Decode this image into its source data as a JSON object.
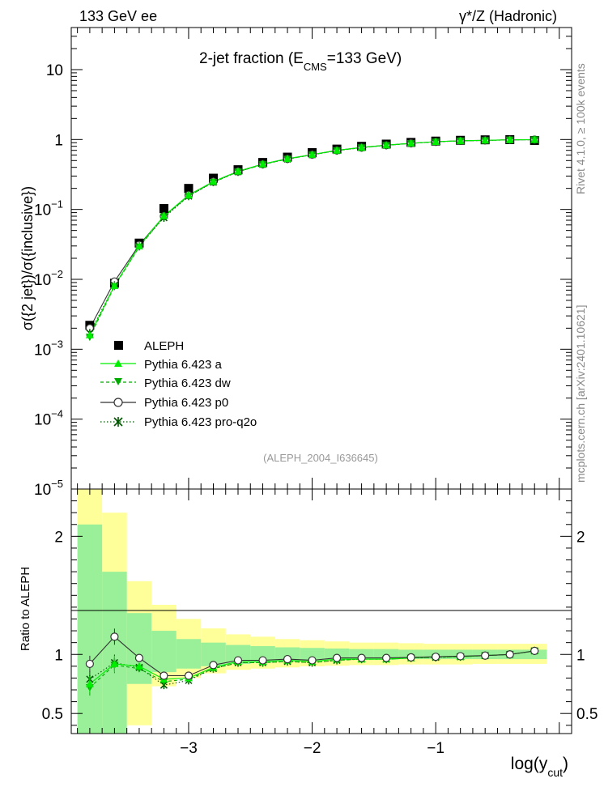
{
  "header": {
    "left": "133 GeV ee",
    "right": "γ*/Z (Hadronic)"
  },
  "side_labels": {
    "rivet": "Rivet 4.1.0, ≥ 100k events",
    "mcplots": "mcplots.cern.ch [arXiv:2401.10621]"
  },
  "chart_data": [
    {
      "type": "scatter",
      "title_main": "2-jet fraction (E",
      "title_sub": "CMS",
      "title_tail": "=133 GeV)",
      "ylabel": "σ({2 jet})/σ({inclusive})",
      "yscale": "log",
      "ylim": [
        1e-05,
        40
      ],
      "xlim": [
        -3.95,
        0.1
      ],
      "ytick_labels": [
        {
          "base": "10",
          "exp": "−5",
          "value": 1e-05
        },
        {
          "base": "10",
          "exp": "−4",
          "value": 0.0001
        },
        {
          "base": "10",
          "exp": "−3",
          "value": 0.001
        },
        {
          "base": "10",
          "exp": "−2",
          "value": 0.01
        },
        {
          "base": "10",
          "exp": "−1",
          "value": 0.1
        },
        {
          "base": "1",
          "exp": "",
          "value": 1
        },
        {
          "base": "10",
          "exp": "",
          "value": 10
        }
      ],
      "watermark": "(ALEPH_2004_I636645)",
      "x": [
        -3.8,
        -3.6,
        -3.4,
        -3.2,
        -3.0,
        -2.8,
        -2.6,
        -2.4,
        -2.2,
        -2.0,
        -1.8,
        -1.6,
        -1.4,
        -1.2,
        -1.0,
        -0.8,
        -0.6,
        -0.4,
        -0.2
      ],
      "series": [
        {
          "name": "ALEPH",
          "values": [
            0.0022,
            0.0088,
            0.033,
            0.103,
            0.2,
            0.28,
            0.37,
            0.47,
            0.56,
            0.65,
            0.73,
            0.8,
            0.86,
            0.91,
            0.95,
            0.975,
            0.99,
            0.995,
            0.97
          ]
        },
        {
          "name": "Pythia 6.423 a",
          "values": [
            0.0016,
            0.0081,
            0.03,
            0.081,
            0.16,
            0.25,
            0.35,
            0.445,
            0.53,
            0.61,
            0.7,
            0.77,
            0.83,
            0.885,
            0.93,
            0.96,
            0.975,
            0.99,
            0.995
          ]
        },
        {
          "name": "Pythia 6.423 dw",
          "values": [
            0.0015,
            0.0079,
            0.029,
            0.079,
            0.155,
            0.245,
            0.345,
            0.44,
            0.525,
            0.605,
            0.695,
            0.765,
            0.825,
            0.88,
            0.925,
            0.955,
            0.97,
            0.99,
            0.995
          ]
        },
        {
          "name": "Pythia 6.423 p0",
          "values": [
            0.002,
            0.0093,
            0.031,
            0.08,
            0.16,
            0.25,
            0.35,
            0.445,
            0.53,
            0.61,
            0.7,
            0.77,
            0.83,
            0.885,
            0.93,
            0.96,
            0.975,
            0.99,
            0.995
          ]
        },
        {
          "name": "Pythia 6.423 pro-q2o",
          "values": [
            0.0017,
            0.0082,
            0.03,
            0.076,
            0.155,
            0.245,
            0.345,
            0.44,
            0.525,
            0.605,
            0.695,
            0.765,
            0.825,
            0.88,
            0.925,
            0.955,
            0.97,
            0.99,
            0.995
          ]
        }
      ]
    },
    {
      "type": "line",
      "ylabel": "Ratio to ALEPH",
      "xlabel_main": "log(y",
      "xlabel_sub": "cut",
      "xlabel_tail": ")",
      "ylim": [
        0.33,
        2.4
      ],
      "xlim": [
        -3.95,
        0.1
      ],
      "ytick_labels": [
        "0.5",
        "1",
        "2"
      ],
      "ytick_values": [
        0.5,
        1,
        2
      ],
      "xtick_labels": [
        "−3",
        "−2",
        "−1"
      ],
      "xtick_values": [
        -3,
        -2,
        -1
      ],
      "band_edges": [
        -3.9,
        -3.7,
        -3.5,
        -3.3,
        -3.1,
        -2.9,
        -2.7,
        -2.5,
        -2.3,
        -2.1,
        -1.9,
        -1.7,
        -1.5,
        -1.3,
        -1.1,
        -0.9,
        -0.7,
        -0.5,
        -0.3,
        -0.1
      ],
      "band_inner": [
        [
          0.33,
          2.1
        ],
        [
          0.33,
          1.7
        ],
        [
          0.75,
          1.35
        ],
        [
          0.85,
          1.2
        ],
        [
          0.88,
          1.13
        ],
        [
          0.9,
          1.1
        ],
        [
          0.92,
          1.08
        ],
        [
          0.93,
          1.07
        ],
        [
          0.94,
          1.06
        ],
        [
          0.945,
          1.055
        ],
        [
          0.95,
          1.05
        ],
        [
          0.955,
          1.045
        ],
        [
          0.955,
          1.045
        ],
        [
          0.96,
          1.04
        ],
        [
          0.96,
          1.04
        ],
        [
          0.96,
          1.04
        ],
        [
          0.96,
          1.04
        ],
        [
          0.96,
          1.04
        ],
        [
          0.96,
          1.04
        ]
      ],
      "band_outer": [
        [
          0.33,
          2.4
        ],
        [
          0.33,
          2.2
        ],
        [
          0.4,
          1.62
        ],
        [
          0.73,
          1.42
        ],
        [
          0.8,
          1.3
        ],
        [
          0.84,
          1.22
        ],
        [
          0.87,
          1.17
        ],
        [
          0.88,
          1.15
        ],
        [
          0.89,
          1.13
        ],
        [
          0.9,
          1.12
        ],
        [
          0.905,
          1.11
        ],
        [
          0.91,
          1.1
        ],
        [
          0.91,
          1.1
        ],
        [
          0.915,
          1.095
        ],
        [
          0.915,
          1.09
        ],
        [
          0.915,
          1.09
        ],
        [
          0.92,
          1.09
        ],
        [
          0.92,
          1.09
        ],
        [
          0.92,
          1.09
        ]
      ],
      "x": [
        -3.8,
        -3.6,
        -3.4,
        -3.2,
        -3.0,
        -2.8,
        -2.6,
        -2.4,
        -2.2,
        -2.0,
        -1.8,
        -1.6,
        -1.4,
        -1.2,
        -1.0,
        -0.8,
        -0.6,
        -0.4,
        -0.2
      ],
      "series": [
        {
          "name": "Pythia 6.423 a",
          "values": [
            0.75,
            0.92,
            0.9,
            0.79,
            0.8,
            0.89,
            0.94,
            0.94,
            0.95,
            0.94,
            0.96,
            0.96,
            0.96,
            0.97,
            0.98,
            0.98,
            0.99,
            1.0,
            1.03
          ]
        },
        {
          "name": "Pythia 6.423 dw",
          "values": [
            0.72,
            0.91,
            0.88,
            0.77,
            0.79,
            0.88,
            0.93,
            0.93,
            0.94,
            0.93,
            0.95,
            0.96,
            0.96,
            0.97,
            0.975,
            0.98,
            0.99,
            1.0,
            1.03
          ]
        },
        {
          "name": "Pythia 6.423 p0",
          "values": [
            0.92,
            1.15,
            0.97,
            0.82,
            0.82,
            0.91,
            0.95,
            0.95,
            0.96,
            0.95,
            0.97,
            0.97,
            0.97,
            0.975,
            0.98,
            0.985,
            0.99,
            1.0,
            1.03
          ]
        },
        {
          "name": "Pythia 6.423 pro-q2o",
          "values": [
            0.79,
            0.93,
            0.89,
            0.74,
            0.78,
            0.88,
            0.93,
            0.93,
            0.94,
            0.93,
            0.95,
            0.96,
            0.96,
            0.97,
            0.975,
            0.98,
            0.99,
            1.0,
            1.03
          ]
        }
      ]
    }
  ],
  "colors": {
    "data": "#000000",
    "a": "#00ee00",
    "dw": "#00aa00",
    "p0": "#333333",
    "q2o": "#005500",
    "band_inner": "#99f099",
    "band_outer": "#ffff99"
  }
}
